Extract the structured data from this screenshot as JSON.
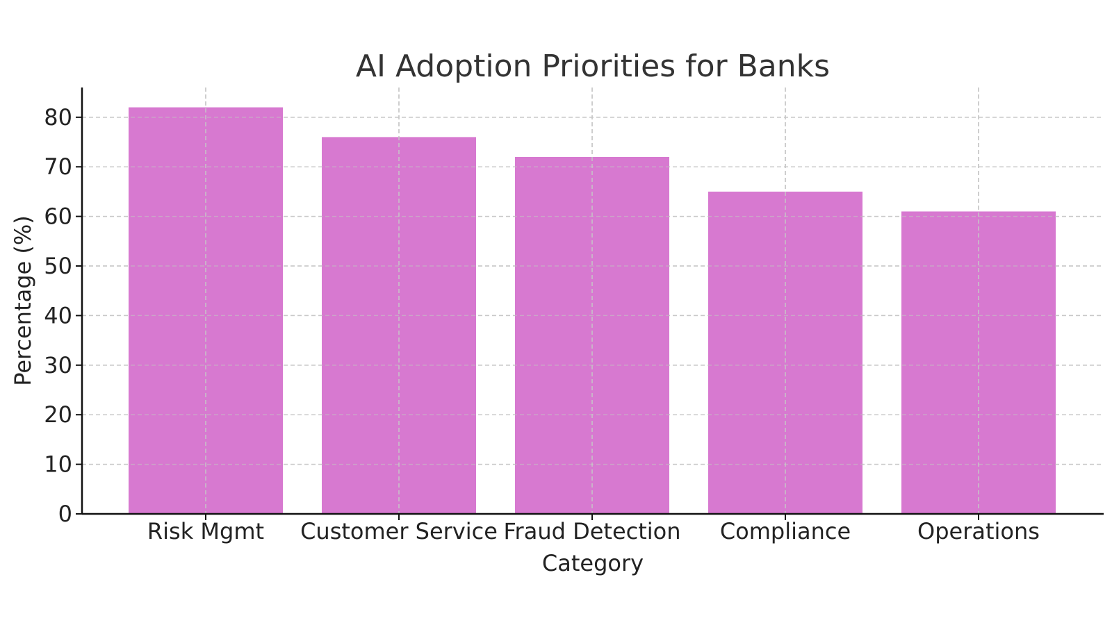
{
  "chart_data": {
    "type": "bar",
    "title": "AI Adoption Priorities for Banks",
    "xlabel": "Category",
    "ylabel": "Percentage (%)",
    "categories": [
      "Risk Mgmt",
      "Customer Service",
      "Fraud Detection",
      "Compliance",
      "Operations"
    ],
    "values": [
      82,
      76,
      72,
      65,
      61
    ],
    "ylim": [
      0,
      86
    ],
    "yticks": [
      0,
      10,
      20,
      30,
      40,
      50,
      60,
      70,
      80
    ],
    "grid": true,
    "grid_style": "dashed",
    "bar_color": "#d062c8"
  }
}
